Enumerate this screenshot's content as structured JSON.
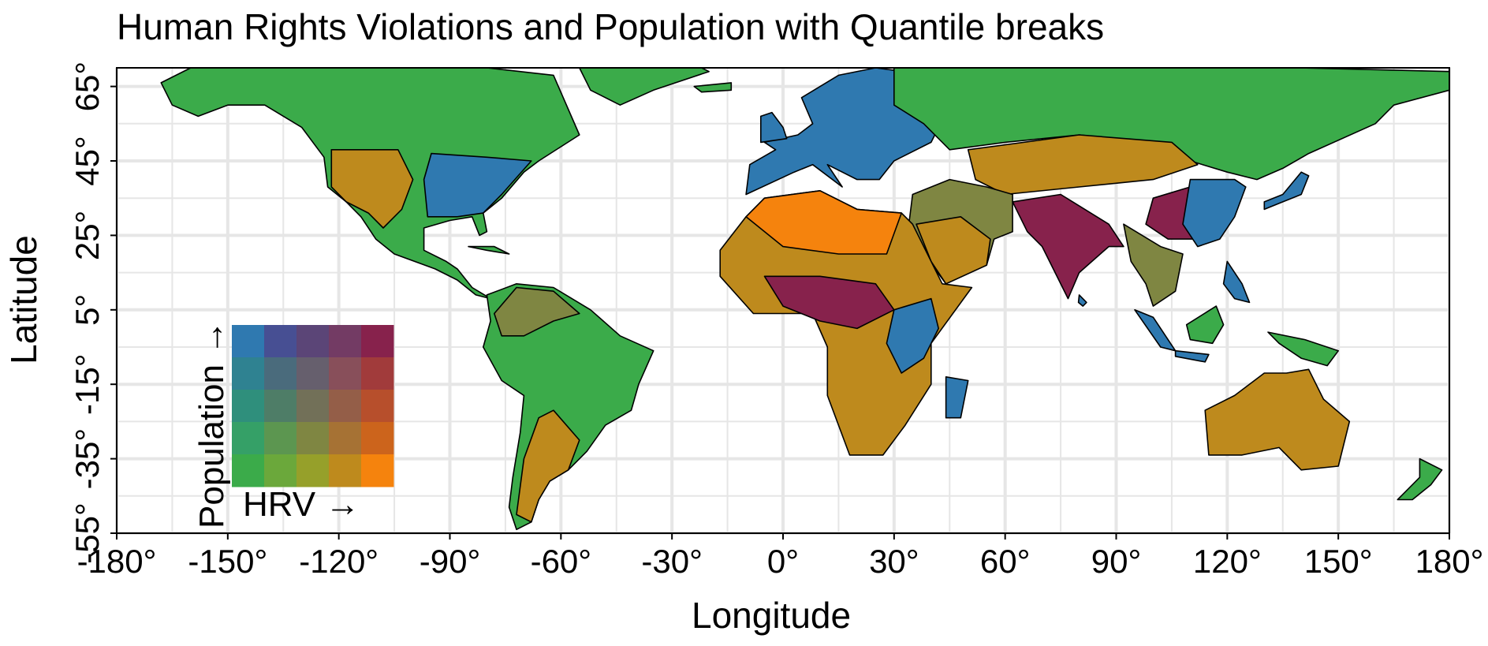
{
  "chart_data": {
    "type": "bivariate choropleth map",
    "title": "Human Rights Violations and Population with Quantile breaks",
    "xlabel": "Longitude",
    "ylabel": "Latitude",
    "xlim": [
      -180,
      180
    ],
    "ylim": [
      -55,
      70
    ],
    "x_ticks": [
      -180,
      -150,
      -120,
      -90,
      -60,
      -30,
      0,
      30,
      60,
      90,
      120,
      150,
      180
    ],
    "x_tick_labels": [
      "-180°",
      "-150°",
      "-120°",
      "-90°",
      "-60°",
      "-30°",
      "0°",
      "30°",
      "60°",
      "90°",
      "120°",
      "150°",
      "180°"
    ],
    "y_ticks": [
      -55,
      -35,
      -15,
      5,
      25,
      45,
      65
    ],
    "y_tick_labels": [
      "-55°",
      "-35°",
      "-15°",
      "5°",
      "25°",
      "45°",
      "65°"
    ],
    "grid": true,
    "legend": {
      "type": "5x5 bivariate color grid",
      "placement": "bottom-left",
      "x_label": "HRV →",
      "y_label": "Population →",
      "rows_top_to_bottom": [
        [
          "#2f79b0",
          "#474f93",
          "#5b4577",
          "#733b64",
          "#87224c"
        ],
        [
          "#2f8291",
          "#4a6b7c",
          "#665f6d",
          "#884f5a",
          "#a13b3b"
        ],
        [
          "#2f8f7c",
          "#4e7d67",
          "#727058",
          "#945e48",
          "#b74f2c"
        ],
        [
          "#35a067",
          "#5c9650",
          "#7f8642",
          "#a67234",
          "#cc641c"
        ],
        [
          "#3bab4a",
          "#6ba83b",
          "#96a02a",
          "#be8a1d",
          "#f5830d"
        ]
      ]
    },
    "region_colors": {
      "low_hrv_low_pop": "#3bab4a",
      "high_hrv_low_pop": "#f5830d",
      "mid_hrv": "#be8a1d",
      "high_pop_low_hrv": "#2f79b0",
      "high_both": "#87224c",
      "mixed": "#7f8642"
    },
    "colors": {
      "border": "#000000",
      "grid": "#e6e6e6",
      "background": "#ffffff"
    }
  }
}
